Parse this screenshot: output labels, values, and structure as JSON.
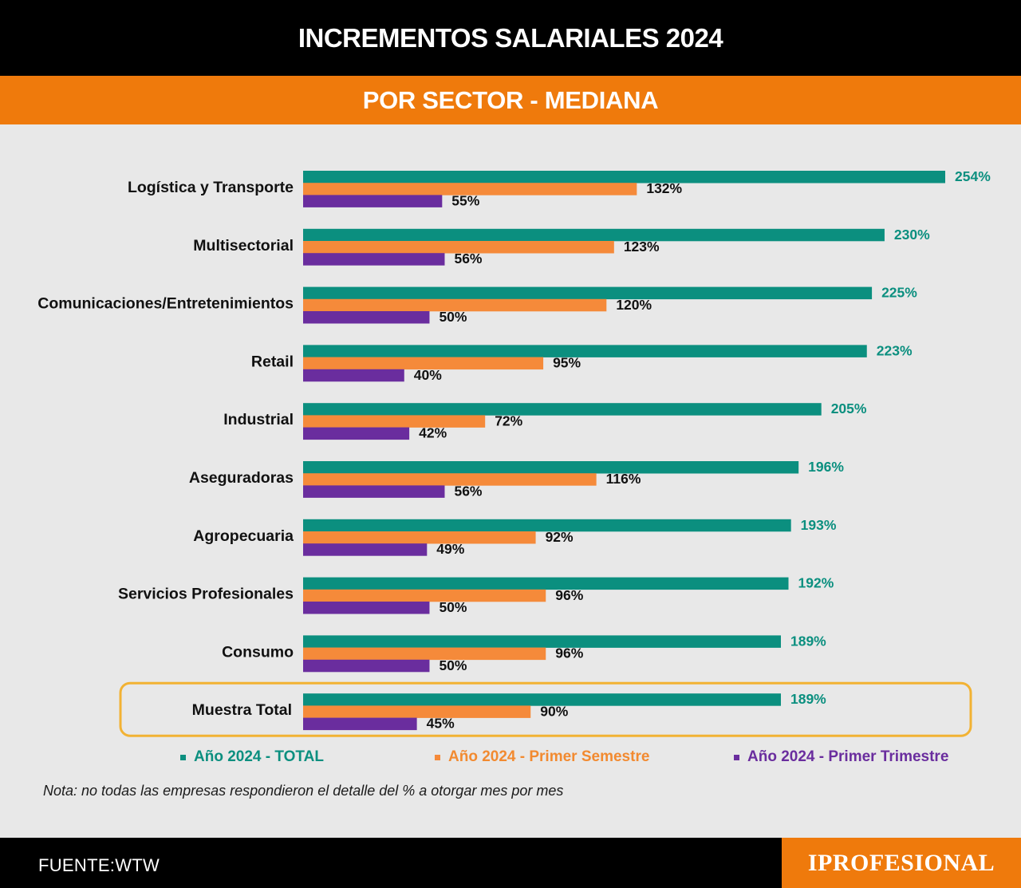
{
  "header": {
    "title": "INCREMENTOS SALARIALES 2024",
    "subtitle": "POR SECTOR - MEDIANA"
  },
  "chart_data": {
    "type": "bar",
    "orientation": "horizontal",
    "categories": [
      "Logística y Transporte",
      "Multisectorial",
      "Comunicaciones/Entretenimientos",
      "Retail",
      "Industrial",
      "Aseguradoras",
      "Agropecuaria",
      "Servicios Profesionales",
      "Consumo",
      "Muestra Total"
    ],
    "series": [
      {
        "name": "Año 2024 - TOTAL",
        "color": "#0b8f7f",
        "label_color": "#0b8f7f",
        "values": [
          254,
          230,
          225,
          223,
          205,
          196,
          193,
          192,
          189,
          189
        ],
        "labels": [
          "254%",
          "230%",
          "225%",
          "223%",
          "205%",
          "196%",
          "193%",
          "192%",
          "189%",
          "189%"
        ]
      },
      {
        "name": "Año 2024 - Primer Semestre",
        "color": "#f58a3a",
        "label_color": "#111111",
        "values": [
          132,
          123,
          120,
          95,
          72,
          116,
          92,
          96,
          96,
          90
        ],
        "labels": [
          "132%",
          "123%",
          "120%",
          "95%",
          "72%",
          "116%",
          "92%",
          "96%",
          "96%",
          "90%"
        ]
      },
      {
        "name": "Año 2024 - Primer Trimestre",
        "color": "#6a2d9e",
        "label_color": "#111111",
        "values": [
          55,
          56,
          50,
          40,
          42,
          56,
          49,
          50,
          50,
          45
        ],
        "labels": [
          "55%",
          "56%",
          "50%",
          "40%",
          "42%",
          "56%",
          "49%",
          "50%",
          "50%",
          "45%"
        ]
      }
    ],
    "highlight_category": "Muestra Total",
    "highlight_color": "#f2b233",
    "legend_position": "bottom",
    "grid": false
  },
  "legend": {
    "total": "Año 2024 - TOTAL",
    "semestre": "Año 2024 - Primer Semestre",
    "trimestre": "Año 2024 - Primer Trimestre",
    "colors": {
      "total": "#0b8f7f",
      "semestre": "#f58a3a",
      "trimestre": "#6a2d9e"
    },
    "text_colors": {
      "total": "#0b8f7f",
      "semestre": "#f28a30",
      "trimestre": "#6a2d9e"
    }
  },
  "note": "Nota: no todas las empresas respondieron el detalle del % a otorgar mes por mes",
  "footer": {
    "source": "FUENTE:WTW",
    "brand": "IPROFESIONAL"
  }
}
